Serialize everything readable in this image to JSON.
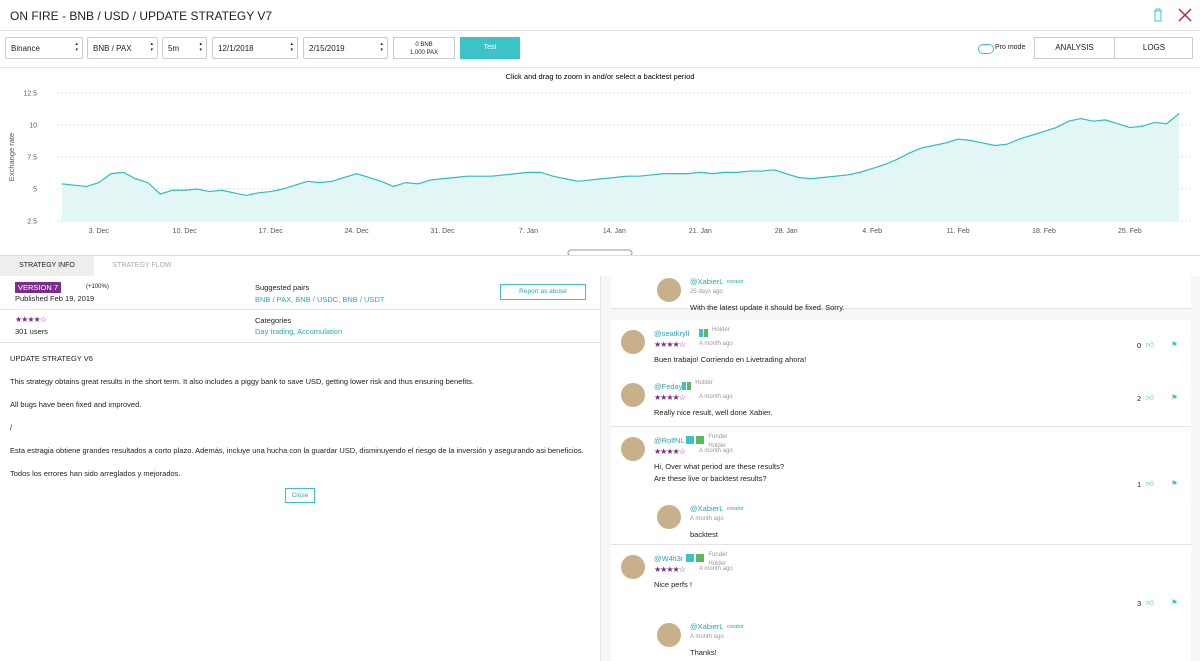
{
  "header": {
    "title": "ON FIRE - BNB / USD / UPDATE STRATEGY V7"
  },
  "toolbar": {
    "exchange": "Binance",
    "pair": "BNB / PAX",
    "interval": "5m",
    "start_date": "12/1/2018",
    "end_date": "2/15/2019",
    "balance": [
      "0 BNB",
      "1,000 PAX"
    ],
    "test": "Test",
    "pro_mode": "Pro mode",
    "tabs": [
      "ANALYSIS",
      "LOGS"
    ]
  },
  "chart_data": {
    "type": "area",
    "subtitle": "Click and drag to zoom in and/or select a backtest period",
    "y_label": "Exchange rate",
    "color": "#2bbfbf",
    "fill": "#e2f6f6",
    "grid": true,
    "ylim": [
      2.5,
      12.5
    ],
    "yticks": [
      2.5,
      5,
      7.5,
      10,
      12.5
    ],
    "categories": [
      null,
      null,
      null,
      "3. Dec",
      null,
      null,
      null,
      null,
      null,
      null,
      "10. Dec",
      null,
      null,
      null,
      null,
      null,
      null,
      "17. Dec",
      null,
      null,
      null,
      null,
      null,
      null,
      "24. Dec",
      null,
      null,
      null,
      null,
      null,
      null,
      "31. Dec",
      null,
      null,
      null,
      null,
      null,
      null,
      "7. Jan",
      null,
      null,
      null,
      null,
      null,
      null,
      "14. Jan",
      null,
      null,
      null,
      null,
      null,
      null,
      "21. Jan",
      null,
      null,
      null,
      null,
      null,
      null,
      "28. Jan",
      null,
      null,
      null,
      null,
      null,
      null,
      "4. Feb",
      null,
      null,
      null,
      null,
      null,
      null,
      "11. Feb",
      null,
      null,
      null,
      null,
      null,
      null,
      "18. Feb",
      null,
      null,
      null,
      null,
      null,
      null,
      "25. Feb",
      null,
      null,
      null,
      null
    ],
    "values": [
      5.4,
      5.3,
      5.2,
      5.5,
      6.2,
      6.3,
      5.8,
      5.5,
      4.6,
      4.9,
      4.9,
      5.0,
      4.8,
      4.9,
      4.7,
      4.5,
      4.7,
      4.8,
      5.0,
      5.3,
      5.6,
      5.5,
      5.6,
      5.9,
      6.2,
      5.9,
      5.6,
      5.2,
      5.5,
      5.4,
      5.7,
      5.8,
      5.9,
      6.0,
      6.0,
      6.0,
      6.1,
      6.2,
      6.3,
      6.3,
      6.0,
      5.8,
      5.6,
      5.7,
      5.8,
      5.9,
      6.0,
      6.0,
      6.1,
      6.2,
      6.2,
      6.2,
      6.3,
      6.2,
      6.3,
      6.3,
      6.4,
      6.4,
      6.5,
      6.2,
      5.9,
      5.8,
      5.9,
      6.0,
      6.1,
      6.3,
      6.6,
      6.9,
      7.3,
      7.8,
      8.2,
      8.4,
      8.6,
      8.9,
      8.8,
      8.6,
      8.4,
      8.5,
      8.9,
      9.2,
      9.5,
      9.8,
      10.3,
      10.5,
      10.3,
      10.4,
      10.1,
      9.8,
      9.9,
      10.2,
      10.1,
      10.9
    ]
  },
  "info": {
    "tabs": [
      "STRATEGY INFO",
      "STRATEGY FLOW"
    ],
    "version": "VERSION 7",
    "performance": "(+100%)",
    "published": "Published Feb 19, 2019",
    "pairs_label": "Suggested pairs",
    "pairs": "BNB / PAX, BNB / USDC, BNB / USDT",
    "report": "Report as abuse",
    "users": "301 users",
    "categories_label": "Categories",
    "categories": "Day trading, Accumulation",
    "description": [
      "UPDATE STRATEGY V6",
      "This strategy obtains great results in the short term. It also includes a piggy bank to save USD, getting lower risk and thus ensuring benefits.",
      "All bugs have been fixed and improved.",
      "/",
      "Esta estragia obtiene grandes resultados a corto plazo. Además, incluye una hucha con la guardar USD, disminuyendo el riesgo de la inversión y asegurando asi beneficios.",
      "Todos los errores han sido arreglados y mejorados."
    ],
    "close": "Close"
  },
  "comments": [
    {
      "user": "@XabierL",
      "role": "creator",
      "time": "25 days ago",
      "text": [
        "With the latest update it should be fixed. Sorry."
      ]
    },
    {
      "user": "@seatkryll",
      "badges": [
        "Holder"
      ],
      "time": "A month ago",
      "text": [
        "Buen trabajo! Corriendo en Livetrading ahora!"
      ],
      "likes": 0
    },
    {
      "user": "@Feday",
      "badges": [
        "Holder"
      ],
      "time": "A month ago",
      "text": [
        "Really nice result, well done Xabier."
      ],
      "likes": 2
    },
    {
      "user": "@RolfNL",
      "badges": [
        "Funder",
        "Holder"
      ],
      "time": "A month ago",
      "text": [
        "Hi, Over what period are these results?",
        "Are these live or backtest results?"
      ],
      "likes": 1,
      "reply": {
        "user": "@XabierL",
        "role": "creator",
        "time": "A month ago",
        "text": [
          "backtest"
        ]
      }
    },
    {
      "user": "@W4lt3r",
      "badges": [
        "Funder",
        "Holder"
      ],
      "time": "A month ago",
      "text": [
        "Nice perfs !"
      ],
      "likes": 3,
      "reply": {
        "user": "@XabierL",
        "role": "creator",
        "time": "A month ago",
        "text": [
          "Thanks!"
        ]
      }
    }
  ]
}
